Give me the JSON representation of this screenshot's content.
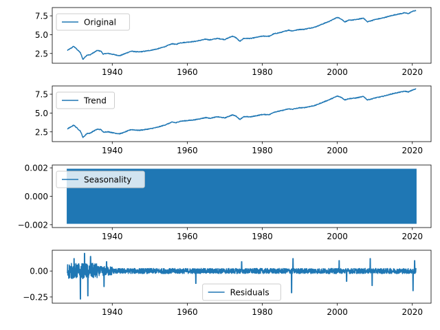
{
  "chart_data": [
    {
      "type": "line",
      "title": "",
      "xlabel": "",
      "ylabel": "",
      "xlim": [
        1924,
        2025
      ],
      "ylim": [
        1.2,
        8.6
      ],
      "x_ticks": [
        1940,
        1960,
        1980,
        2000,
        2020
      ],
      "y_ticks": [
        2.5,
        5.0,
        7.5
      ],
      "y_tick_labels": [
        "2.5",
        "5.0",
        "7.5"
      ],
      "legend": "top-left",
      "grid": false,
      "series": [
        {
          "name": "Original",
          "color": "#1f77b4",
          "x": [
            1928,
            1929,
            1929.7,
            1930.5,
            1931.5,
            1932.2,
            1932.5,
            1933.3,
            1934,
            1935,
            1936,
            1937,
            1937.6,
            1938.3,
            1939,
            1940,
            1941,
            1942,
            1943,
            1944,
            1945,
            1946,
            1947,
            1948,
            1950,
            1952,
            1954,
            1956,
            1957,
            1958,
            1960,
            1962,
            1963,
            1965,
            1966,
            1968,
            1970,
            1972,
            1973,
            1974,
            1975,
            1977,
            1980,
            1982,
            1983,
            1985,
            1987,
            1988,
            1990,
            1991,
            1994,
            1995,
            1998,
            2000,
            2001,
            2002,
            2003,
            2005,
            2007,
            2008,
            2009,
            2010,
            2012,
            2015,
            2018,
            2019,
            2020,
            2021
          ],
          "y": [
            2.9,
            3.2,
            3.45,
            3.1,
            2.6,
            1.7,
            1.9,
            2.3,
            2.3,
            2.6,
            2.9,
            2.8,
            2.4,
            2.5,
            2.5,
            2.4,
            2.3,
            2.2,
            2.4,
            2.6,
            2.8,
            2.75,
            2.7,
            2.75,
            2.9,
            3.1,
            3.4,
            3.8,
            3.7,
            3.9,
            4.0,
            4.1,
            4.2,
            4.4,
            4.3,
            4.5,
            4.35,
            4.8,
            4.6,
            4.1,
            4.5,
            4.5,
            4.8,
            4.8,
            5.1,
            5.3,
            5.6,
            5.5,
            5.7,
            5.7,
            6.0,
            6.2,
            6.8,
            7.3,
            7.1,
            6.7,
            6.9,
            7.0,
            7.2,
            6.7,
            6.85,
            7.0,
            7.2,
            7.6,
            7.9,
            7.8,
            8.1,
            8.2
          ]
        }
      ]
    },
    {
      "type": "line",
      "title": "",
      "xlabel": "",
      "ylabel": "",
      "xlim": [
        1924,
        2025
      ],
      "ylim": [
        1.2,
        8.6
      ],
      "x_ticks": [
        1940,
        1960,
        1980,
        2000,
        2020
      ],
      "y_ticks": [
        2.5,
        5.0,
        7.5
      ],
      "y_tick_labels": [
        "2.5",
        "5.0",
        "7.5"
      ],
      "legend": "top-left",
      "grid": false,
      "series": [
        {
          "name": "Trend",
          "color": "#1f77b4",
          "x": [
            1928,
            1929,
            1929.7,
            1930.5,
            1931.5,
            1932.2,
            1932.5,
            1933.3,
            1934,
            1935,
            1936,
            1937,
            1937.6,
            1938.3,
            1939,
            1940,
            1941,
            1942,
            1943,
            1944,
            1945,
            1946,
            1947,
            1948,
            1950,
            1952,
            1954,
            1956,
            1957,
            1958,
            1960,
            1962,
            1963,
            1965,
            1966,
            1968,
            1970,
            1972,
            1973,
            1974,
            1975,
            1977,
            1980,
            1982,
            1983,
            1985,
            1987,
            1988,
            1990,
            1991,
            1994,
            1995,
            1998,
            2000,
            2001,
            2002,
            2003,
            2005,
            2007,
            2008,
            2009,
            2010,
            2012,
            2015,
            2018,
            2019,
            2020,
            2021
          ],
          "y": [
            2.9,
            3.15,
            3.4,
            3.05,
            2.6,
            1.75,
            1.9,
            2.3,
            2.3,
            2.6,
            2.85,
            2.8,
            2.45,
            2.5,
            2.5,
            2.4,
            2.3,
            2.25,
            2.4,
            2.6,
            2.8,
            2.75,
            2.7,
            2.75,
            2.9,
            3.1,
            3.4,
            3.8,
            3.7,
            3.9,
            4.0,
            4.1,
            4.2,
            4.4,
            4.3,
            4.5,
            4.35,
            4.75,
            4.6,
            4.15,
            4.5,
            4.5,
            4.8,
            4.8,
            5.1,
            5.3,
            5.55,
            5.5,
            5.7,
            5.7,
            6.0,
            6.2,
            6.8,
            7.25,
            7.1,
            6.75,
            6.9,
            7.0,
            7.2,
            6.75,
            6.85,
            7.0,
            7.2,
            7.6,
            7.9,
            7.8,
            8.05,
            8.2
          ]
        }
      ]
    },
    {
      "type": "line",
      "title": "",
      "xlabel": "",
      "ylabel": "",
      "xlim": [
        1924,
        2025
      ],
      "ylim": [
        -0.0022,
        0.0022
      ],
      "x_ticks": [
        1940,
        1960,
        1980,
        2000,
        2020
      ],
      "y_ticks": [
        -0.002,
        0.0,
        0.002
      ],
      "y_tick_labels": [
        "−0.002",
        "0.000",
        "0.002"
      ],
      "legend": "top-left",
      "grid": false,
      "series": [
        {
          "name": "Seasonality",
          "color": "#1f77b4",
          "x_range": [
            1928,
            2021
          ],
          "amplitude": 0.0019,
          "period_years": 1
        }
      ]
    },
    {
      "type": "line",
      "title": "",
      "xlabel": "",
      "ylabel": "",
      "xlim": [
        1924,
        2025
      ],
      "ylim": [
        -0.31,
        0.2
      ],
      "x_ticks": [
        1940,
        1960,
        1980,
        2000,
        2020
      ],
      "y_ticks": [
        -0.25,
        0.0
      ],
      "y_tick_labels": [
        "−0.25",
        "0.00"
      ],
      "legend": "lower-center",
      "grid": false,
      "series": [
        {
          "name": "Residuals",
          "color": "#1f77b4",
          "x_range": [
            1928,
            2021
          ],
          "spikes": [
            {
              "x": 1929.8,
              "y": 0.12
            },
            {
              "x": 1931.5,
              "y": -0.27
            },
            {
              "x": 1932.6,
              "y": 0.17
            },
            {
              "x": 1933.5,
              "y": -0.24
            },
            {
              "x": 1934.2,
              "y": 0.14
            },
            {
              "x": 1937.8,
              "y": -0.15
            },
            {
              "x": 1938.5,
              "y": 0.09
            },
            {
              "x": 1962.3,
              "y": -0.12
            },
            {
              "x": 1974.5,
              "y": 0.09
            },
            {
              "x": 1987.8,
              "y": -0.21
            },
            {
              "x": 1988.2,
              "y": 0.12
            },
            {
              "x": 2000.5,
              "y": 0.1
            },
            {
              "x": 2002.5,
              "y": -0.1
            },
            {
              "x": 2008.8,
              "y": 0.12
            },
            {
              "x": 2009.3,
              "y": -0.14
            },
            {
              "x": 2020.2,
              "y": -0.19
            },
            {
              "x": 2020.6,
              "y": 0.1
            }
          ]
        }
      ]
    }
  ]
}
